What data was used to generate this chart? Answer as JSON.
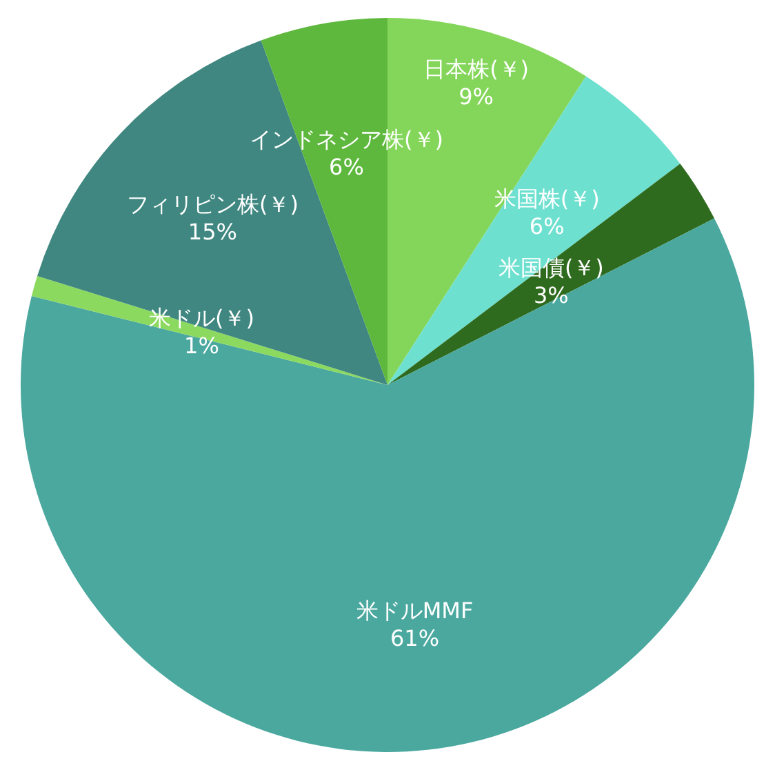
{
  "chart_data": {
    "type": "pie",
    "categories": [
      "日本株(￥)",
      "米国株(￥)",
      "米国債(￥)",
      "米ドルMMF",
      "米ドル(￥)",
      "フィリピン株(￥)",
      "インドネシア株(￥)"
    ],
    "values": [
      9.1,
      5.6,
      2.8,
      61.4,
      0.9,
      14.6,
      5.6
    ],
    "value_labels": [
      "9%",
      "6%",
      "3%",
      "61%",
      "1%",
      "15%",
      "6%"
    ],
    "colors": [
      "#84d65a",
      "#6ee0d0",
      "#2f6b1e",
      "#4aa89f",
      "#8cd960",
      "#3f8780",
      "#5fb83e"
    ]
  }
}
